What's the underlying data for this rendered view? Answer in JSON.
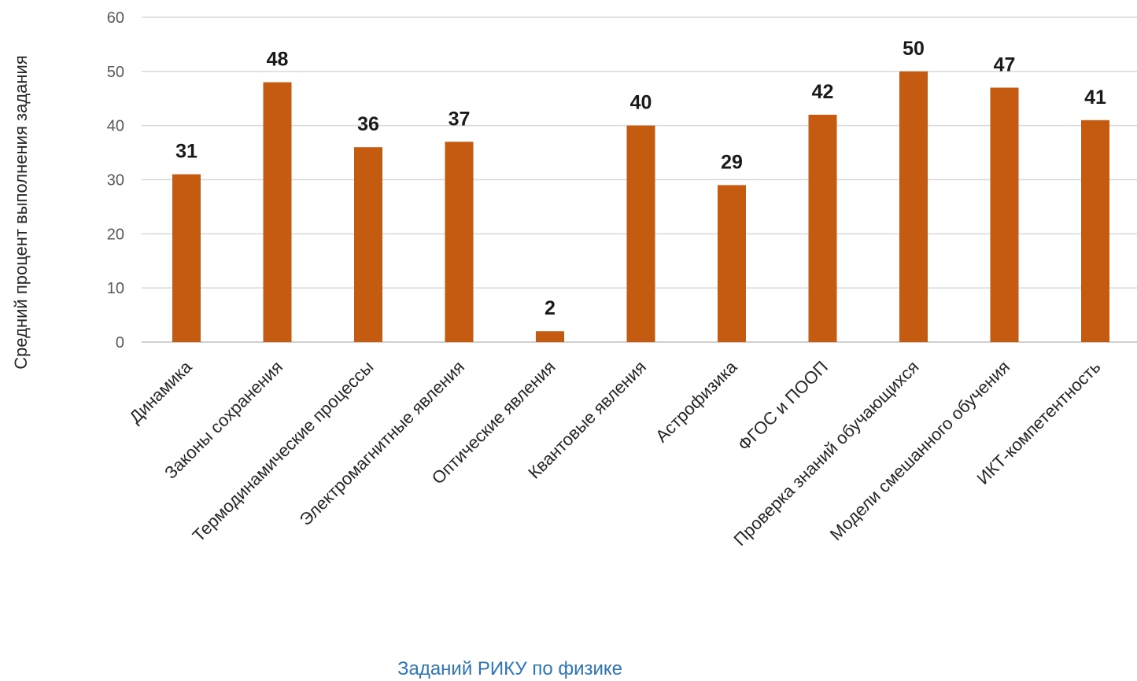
{
  "chart_data": {
    "type": "bar",
    "categories": [
      "Динамика",
      "Законы сохранения",
      "Термодинамические процессы",
      "Электромагнитные явления",
      "Оптические явления",
      "Квантовые явления",
      "Астрофизика",
      "ФГОС и ПООП",
      "Проверка знаний обучающихся",
      "Модели смешанного обучения",
      "ИКТ-компетентность"
    ],
    "values": [
      31,
      48,
      36,
      37,
      2,
      40,
      29,
      42,
      50,
      47,
      41
    ],
    "title": "",
    "xlabel": "Заданий РИКУ по физике",
    "ylabel": "Средний процент выполнения задания",
    "ylim": [
      0,
      60
    ],
    "yticks": [
      0,
      10,
      20,
      30,
      40,
      50,
      60
    ],
    "grid": true,
    "data_labels": true,
    "colors": {
      "bar": "#c55a11",
      "grid": "#d9d9d9",
      "xlabel": "#2e75b6"
    }
  }
}
